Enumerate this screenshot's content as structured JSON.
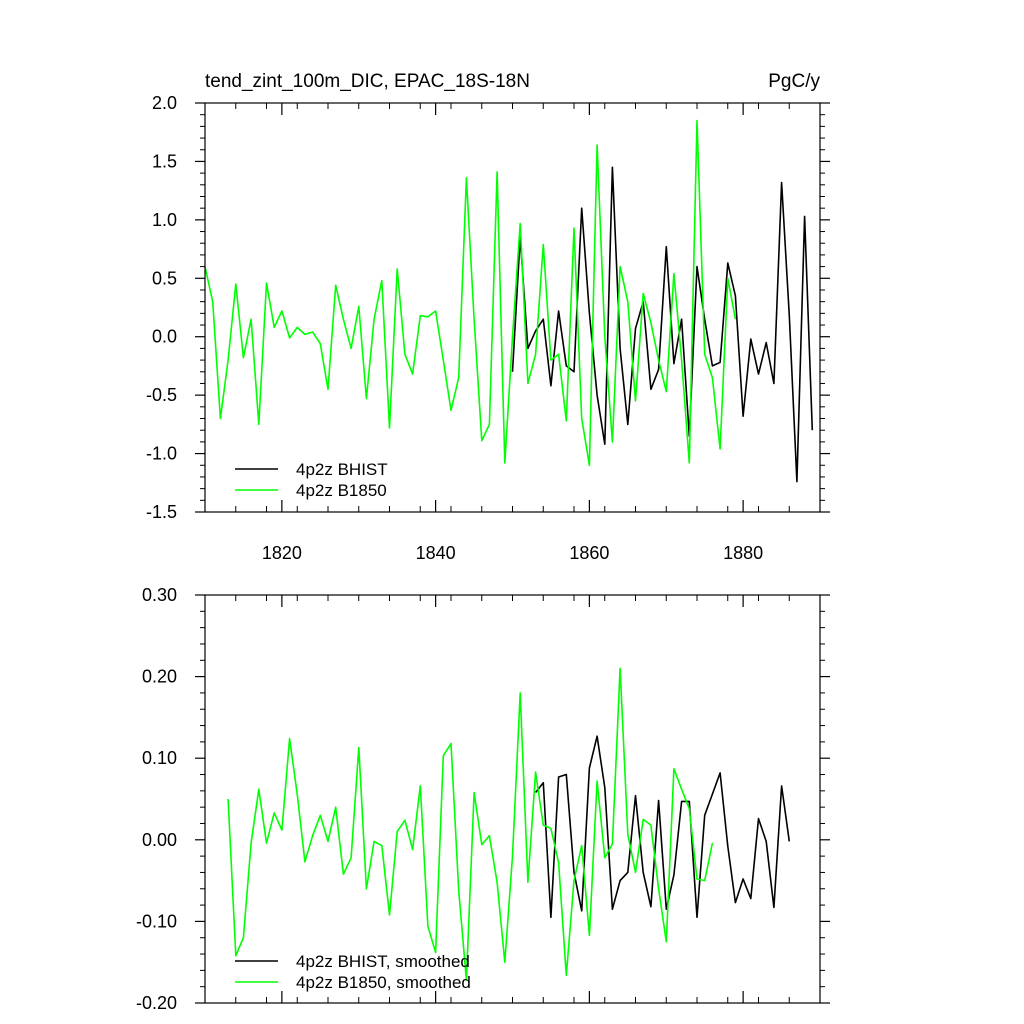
{
  "chart_data": [
    {
      "type": "line",
      "title": "tend_zint_100m_DIC, EPAC_18S-18N",
      "units": "PgC/y",
      "xlim": [
        1810,
        1890
      ],
      "ylim": [
        -1.5,
        2.0
      ],
      "xticks": [
        1820,
        1840,
        1860,
        1880
      ],
      "xtick_labels": [
        "1820",
        "1840",
        "1860",
        "1880"
      ],
      "yticks": [
        -1.5,
        -1.0,
        -0.5,
        0.0,
        0.5,
        1.0,
        1.5,
        2.0
      ],
      "ytick_labels": [
        "-1.5",
        "-1.0",
        "-0.5",
        "0.0",
        "0.5",
        "1.0",
        "1.5",
        "2.0"
      ],
      "legend": "bottom-left",
      "series": [
        {
          "name": "4p2z BHIST",
          "color": "#000000",
          "x": [
            1850,
            1851,
            1852,
            1853,
            1854,
            1855,
            1856,
            1857,
            1858,
            1859,
            1860,
            1861,
            1862,
            1863,
            1864,
            1865,
            1866,
            1867,
            1868,
            1869,
            1870,
            1871,
            1872,
            1873,
            1874,
            1875,
            1876,
            1877,
            1878,
            1879,
            1880,
            1881,
            1882,
            1883,
            1884,
            1885,
            1886,
            1887,
            1888,
            1889
          ],
          "y": [
            -0.3,
            0.85,
            -0.1,
            0.05,
            0.15,
            -0.42,
            0.22,
            -0.25,
            -0.3,
            1.1,
            0.2,
            -0.5,
            -0.92,
            1.45,
            -0.1,
            -0.75,
            0.07,
            0.3,
            -0.45,
            -0.28,
            0.77,
            -0.23,
            0.15,
            -0.85,
            0.6,
            0.15,
            -0.25,
            -0.22,
            0.63,
            0.35,
            -0.68,
            -0.02,
            -0.32,
            -0.05,
            -0.4,
            1.32,
            0.18,
            -1.24,
            1.03,
            -0.8
          ]
        },
        {
          "name": "4p2z B1850",
          "color": "#00ff00",
          "x": [
            1810,
            1811,
            1812,
            1813,
            1814,
            1815,
            1816,
            1817,
            1818,
            1819,
            1820,
            1821,
            1822,
            1823,
            1824,
            1825,
            1826,
            1827,
            1828,
            1829,
            1830,
            1831,
            1832,
            1833,
            1834,
            1835,
            1836,
            1837,
            1838,
            1839,
            1840,
            1841,
            1842,
            1843,
            1844,
            1845,
            1846,
            1847,
            1848,
            1849,
            1850,
            1851,
            1852,
            1853,
            1854,
            1855,
            1856,
            1857,
            1858,
            1859,
            1860,
            1861,
            1862,
            1863,
            1864,
            1865,
            1866,
            1867,
            1868,
            1869,
            1870,
            1871,
            1872,
            1873,
            1874,
            1875,
            1876,
            1877,
            1878,
            1879
          ],
          "y": [
            0.6,
            0.3,
            -0.7,
            -0.2,
            0.45,
            -0.18,
            0.15,
            -0.75,
            0.46,
            0.08,
            0.22,
            -0.01,
            0.08,
            0.02,
            0.04,
            -0.06,
            -0.45,
            0.44,
            0.15,
            -0.1,
            0.26,
            -0.53,
            0.15,
            0.48,
            -0.78,
            0.58,
            -0.15,
            -0.32,
            0.18,
            0.17,
            0.22,
            -0.2,
            -0.63,
            -0.35,
            1.36,
            0.15,
            -0.89,
            -0.75,
            1.41,
            -1.08,
            0.0,
            0.97,
            -0.4,
            -0.15,
            0.79,
            -0.2,
            -0.15,
            -0.72,
            0.93,
            -0.7,
            -1.1,
            1.64,
            0.0,
            -0.9,
            0.6,
            0.3,
            -0.55,
            0.37,
            0.12,
            -0.2,
            -0.47,
            0.54,
            -0.2,
            -1.08,
            1.85,
            -0.15,
            -0.35,
            -0.96,
            0.5,
            0.15
          ]
        }
      ]
    },
    {
      "type": "line",
      "xlim": [
        1810,
        1890
      ],
      "ylim": [
        -0.2,
        0.3
      ],
      "xticks": [
        1820,
        1840,
        1860,
        1880
      ],
      "yticks": [
        -0.2,
        -0.1,
        0.0,
        0.1,
        0.2,
        0.3
      ],
      "ytick_labels": [
        "-0.20",
        "-0.10",
        "0.00",
        "0.10",
        "0.20",
        "0.30"
      ],
      "legend": "bottom-left",
      "series": [
        {
          "name": "4p2z BHIST, smoothed",
          "color": "#000000",
          "x": [
            1853,
            1854,
            1855,
            1856,
            1857,
            1858,
            1859,
            1860,
            1861,
            1862,
            1863,
            1864,
            1865,
            1866,
            1867,
            1868,
            1869,
            1870,
            1871,
            1872,
            1873,
            1874,
            1875,
            1876,
            1877,
            1878,
            1879,
            1880,
            1881,
            1882,
            1883,
            1884,
            1885,
            1886
          ],
          "y": [
            0.058,
            0.07,
            -0.095,
            0.077,
            0.08,
            -0.04,
            -0.087,
            0.088,
            0.127,
            0.064,
            -0.085,
            -0.05,
            -0.04,
            0.054,
            -0.04,
            -0.082,
            0.048,
            -0.085,
            -0.043,
            0.047,
            0.047,
            -0.095,
            0.03,
            0.056,
            0.082,
            -0.008,
            -0.077,
            -0.048,
            -0.072,
            0.026,
            -0.002,
            -0.083,
            0.066,
            -0.002
          ]
        },
        {
          "name": "4p2z B1850, smoothed",
          "color": "#00ff00",
          "x": [
            1813,
            1814,
            1815,
            1816,
            1817,
            1818,
            1819,
            1820,
            1821,
            1822,
            1823,
            1824,
            1825,
            1826,
            1827,
            1828,
            1829,
            1830,
            1831,
            1832,
            1833,
            1834,
            1835,
            1836,
            1837,
            1838,
            1839,
            1840,
            1841,
            1842,
            1843,
            1844,
            1845,
            1846,
            1847,
            1848,
            1849,
            1850,
            1851,
            1852,
            1853,
            1854,
            1855,
            1856,
            1857,
            1858,
            1859,
            1860,
            1861,
            1862,
            1863,
            1864,
            1865,
            1866,
            1867,
            1868,
            1869,
            1870,
            1871,
            1872,
            1873,
            1874,
            1875,
            1876
          ],
          "y": [
            0.05,
            -0.142,
            -0.12,
            -0.004,
            0.062,
            -0.004,
            0.033,
            0.012,
            0.124,
            0.055,
            -0.027,
            0.005,
            0.03,
            -0.002,
            0.04,
            -0.042,
            -0.022,
            0.113,
            -0.06,
            -0.002,
            -0.007,
            -0.092,
            0.01,
            0.024,
            -0.012,
            0.066,
            -0.106,
            -0.138,
            0.103,
            0.118,
            -0.062,
            -0.172,
            0.058,
            -0.006,
            0.005,
            -0.052,
            -0.15,
            -0.02,
            0.18,
            -0.052,
            0.083,
            0.018,
            0.014,
            -0.028,
            -0.166,
            -0.05,
            -0.007,
            -0.117,
            0.072,
            -0.022,
            -0.005,
            0.21,
            0.007,
            -0.04,
            0.025,
            0.018,
            -0.06,
            -0.125,
            0.087,
            0.062,
            0.038,
            -0.048,
            -0.05,
            -0.004
          ]
        }
      ]
    }
  ]
}
